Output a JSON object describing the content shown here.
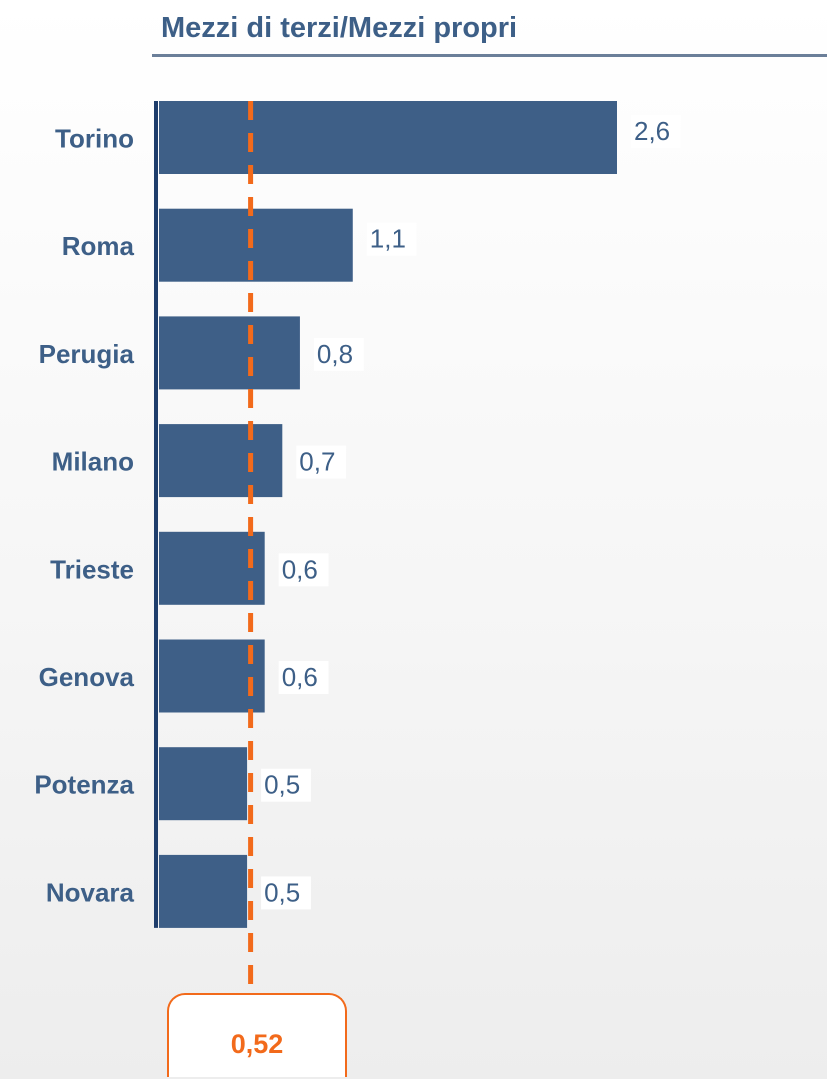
{
  "chart_data": {
    "type": "bar",
    "orientation": "horizontal",
    "title": "Mezzi di terzi/Mezzi propri",
    "categories": [
      "Torino",
      "Roma",
      "Perugia",
      "Milano",
      "Trieste",
      "Genova",
      "Potenza",
      "Novara"
    ],
    "values": [
      2.6,
      1.1,
      0.8,
      0.7,
      0.6,
      0.6,
      0.5,
      0.5
    ],
    "value_labels": [
      "2,6",
      "1,1",
      "0,8",
      "0,7",
      "0,6",
      "0,6",
      "0,5",
      "0,5"
    ],
    "reference_line": {
      "value": 0.52,
      "label": "0,52",
      "style": "dashed",
      "color": "#f26a1b"
    },
    "bar_color": "#3e5f87",
    "axis_color": "#1e3d6b",
    "xlim": [
      0,
      2.6
    ],
    "grid": false,
    "legend": "none"
  }
}
